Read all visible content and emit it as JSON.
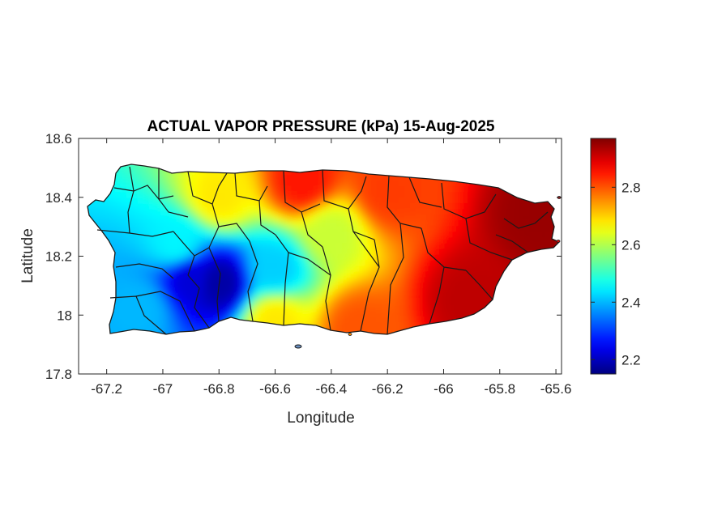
{
  "chart_data": {
    "type": "heatmap",
    "title": "ACTUAL VAPOR PRESSURE (kPa) 15-Aug-2025",
    "xlabel": "Longitude",
    "ylabel": "Latitude",
    "xlim": [
      -67.3,
      -65.58
    ],
    "ylim": [
      17.8,
      18.6
    ],
    "xticks": [
      -67.2,
      -67,
      -66.8,
      -66.6,
      -66.4,
      -66.2,
      -66,
      -65.8,
      -65.6
    ],
    "xtick_labels": [
      "-67.2",
      "-67",
      "-66.8",
      "-66.6",
      "-66.4",
      "-66.2",
      "-66",
      "-65.8",
      "-65.6"
    ],
    "yticks": [
      17.8,
      18,
      18.2,
      18.4,
      18.6
    ],
    "ytick_labels": [
      "17.8",
      "18",
      "18.2",
      "18.4",
      "18.6"
    ],
    "colorbar": {
      "colormap": "jet",
      "range": [
        2.15,
        2.97
      ],
      "ticks": [
        2.2,
        2.4,
        2.6,
        2.8
      ],
      "tick_labels": [
        "2.2",
        "2.4",
        "2.6",
        "2.8"
      ],
      "units": "kPa"
    },
    "grid": false,
    "field_summary": [
      {
        "lon": -66.8,
        "lat": 18.11,
        "value": 2.18
      },
      {
        "lon": -66.9,
        "lat": 18.12,
        "value": 2.22
      },
      {
        "lon": -66.6,
        "lat": 18.16,
        "value": 2.42
      },
      {
        "lon": -67.08,
        "lat": 18.02,
        "value": 2.4
      },
      {
        "lon": -66.95,
        "lat": 18.24,
        "value": 2.45
      },
      {
        "lon": -66.4,
        "lat": 18.28,
        "value": 2.62
      },
      {
        "lon": -66.8,
        "lat": 18.4,
        "value": 2.68
      },
      {
        "lon": -66.5,
        "lat": 18.45,
        "value": 2.85
      },
      {
        "lon": -66.2,
        "lat": 18.42,
        "value": 2.82
      },
      {
        "lon": -65.65,
        "lat": 18.33,
        "value": 2.95
      },
      {
        "lon": -65.9,
        "lat": 18.05,
        "value": 2.92
      },
      {
        "lon": -66.3,
        "lat": 17.95,
        "value": 2.8
      },
      {
        "lon": -66.6,
        "lat": 17.98,
        "value": 2.68
      }
    ]
  },
  "colors": {
    "axis": "#262626",
    "boundary": "#1a1a1a",
    "background": "#ffffff"
  }
}
